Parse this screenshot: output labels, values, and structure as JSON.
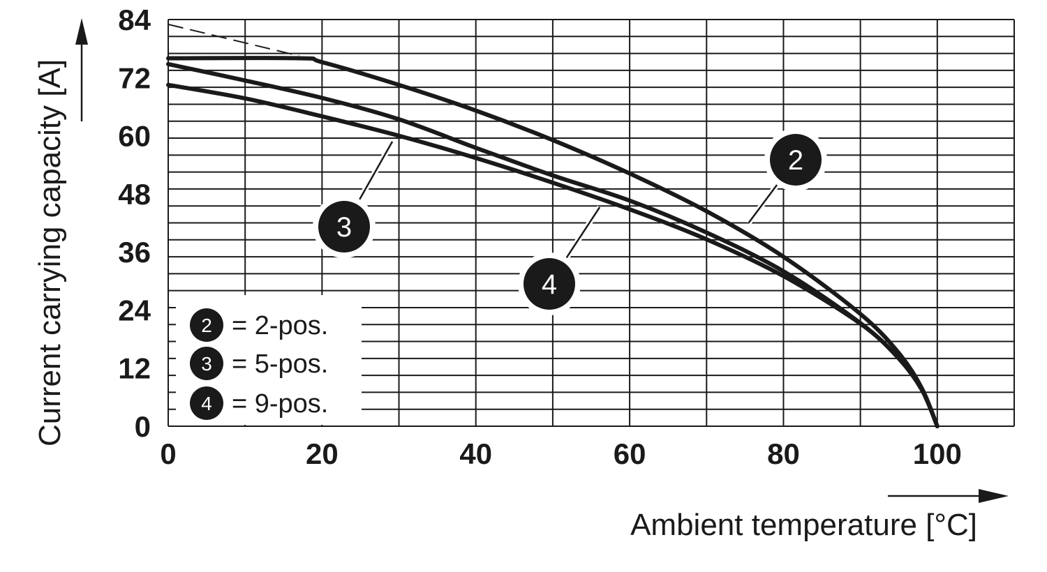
{
  "chart_data": {
    "type": "line",
    "xlabel": "Ambient temperature [°C]",
    "ylabel": "Current carrying capacity [A]",
    "xlim": [
      0,
      110
    ],
    "ylim": [
      0,
      84
    ],
    "x_ticks": [
      "0",
      "20",
      "40",
      "60",
      "80",
      "100"
    ],
    "y_ticks": [
      "0",
      "12",
      "24",
      "36",
      "48",
      "60",
      "72",
      "84"
    ],
    "grid": true,
    "legend_position": "bottom-left",
    "series": [
      {
        "name": "2-pos.",
        "marker": "2",
        "x": [
          0,
          17,
          20,
          30,
          40,
          50,
          60,
          70,
          80,
          90,
          95,
          98,
          100
        ],
        "y": [
          76,
          76,
          75.2,
          70.5,
          65.2,
          59.1,
          52.2,
          44.4,
          35,
          23.2,
          15.1,
          7.8,
          0
        ]
      },
      {
        "name": "5-pos.",
        "marker": "3",
        "x": [
          0,
          10,
          20,
          30,
          40,
          50,
          60,
          70,
          80,
          90,
          95,
          98,
          100
        ],
        "y": [
          74.8,
          71.4,
          67.8,
          63.4,
          57.5,
          51.8,
          46.6,
          40,
          32,
          21.3,
          14,
          7.5,
          0
        ]
      },
      {
        "name": "9-pos.",
        "marker": "4",
        "x": [
          0,
          10,
          20,
          30,
          40,
          50,
          60,
          70,
          80,
          90,
          95,
          98,
          100
        ],
        "y": [
          70.5,
          67.7,
          64,
          60,
          55.4,
          50.3,
          44.8,
          38.6,
          31,
          21.2,
          14,
          7.5,
          0
        ]
      }
    ],
    "extrapolation": {
      "series_marker": "2",
      "style": "dashed",
      "x": [
        0,
        17
      ],
      "y": [
        83,
        76.5
      ]
    },
    "legend": [
      {
        "marker": "2",
        "label": "= 2-pos."
      },
      {
        "marker": "3",
        "label": "= 5-pos."
      },
      {
        "marker": "4",
        "label": "= 9-pos."
      }
    ],
    "callouts": [
      {
        "marker": "2",
        "pointer_x": 75,
        "pointer_y": 41.0
      },
      {
        "marker": "3",
        "pointer_x": 29.5,
        "pointer_y": 59.8
      },
      {
        "marker": "4",
        "pointer_x": 56.5,
        "pointer_y": 46.2
      }
    ]
  }
}
